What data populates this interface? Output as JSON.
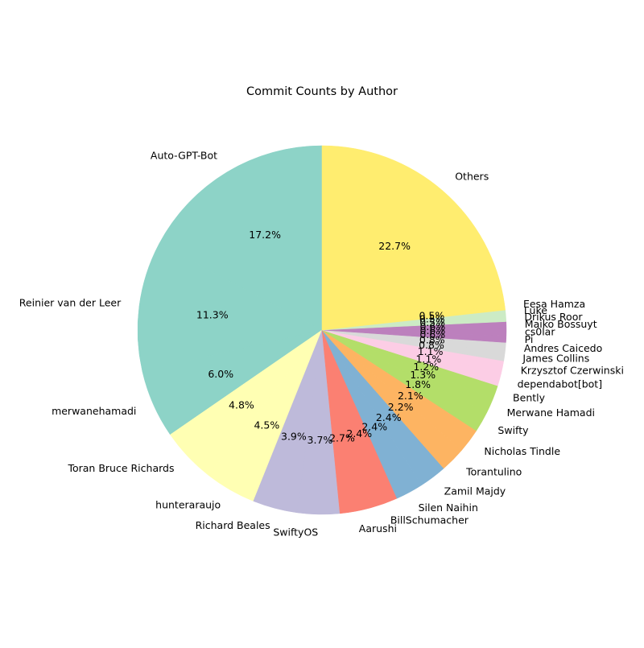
{
  "chart_data": {
    "type": "pie",
    "title": "Commit Counts by Author",
    "start_angle_deg": 90,
    "direction": "counterclockwise",
    "slices": [
      {
        "label": "Auto-GPT-Bot",
        "value": 17.2,
        "pct_text": "17.2%",
        "color": "#8dd3c7"
      },
      {
        "label": "Reinier van der Leer",
        "value": 11.3,
        "pct_text": "11.3%",
        "color": "#8dd3c7"
      },
      {
        "label": "merwanehamadi",
        "value": 6.0,
        "pct_text": "6.0%",
        "color": "#8dd3c7"
      },
      {
        "label": "Toran Bruce Richards",
        "value": 4.8,
        "pct_text": "4.8%",
        "color": "#ffffb3"
      },
      {
        "label": "hunteraraujo",
        "value": 4.5,
        "pct_text": "4.5%",
        "color": "#ffffb3"
      },
      {
        "label": "Richard Beales",
        "value": 3.9,
        "pct_text": "3.9%",
        "color": "#bebada"
      },
      {
        "label": "SwiftyOS",
        "value": 3.7,
        "pct_text": "3.7%",
        "color": "#bebada"
      },
      {
        "label": "Aarushi",
        "value": 2.7,
        "pct_text": "2.7%",
        "color": "#fb8072"
      },
      {
        "label": "BillSchumacher",
        "value": 2.4,
        "pct_text": "2.4%",
        "color": "#fb8072"
      },
      {
        "label": "Silen Naihin",
        "value": 2.4,
        "pct_text": "2.4%",
        "color": "#80b1d3"
      },
      {
        "label": "Zamil Majdy",
        "value": 2.4,
        "pct_text": "2.4%",
        "color": "#80b1d3"
      },
      {
        "label": "Torantulino",
        "value": 2.2,
        "pct_text": "2.2%",
        "color": "#fdb462"
      },
      {
        "label": "Nicholas Tindle",
        "value": 2.1,
        "pct_text": "2.1%",
        "color": "#fdb462"
      },
      {
        "label": "Swifty",
        "value": 1.8,
        "pct_text": "1.8%",
        "color": "#b3de69"
      },
      {
        "label": "Merwane Hamadi",
        "value": 1.3,
        "pct_text": "1.3%",
        "color": "#b3de69"
      },
      {
        "label": "Bently",
        "value": 1.2,
        "pct_text": "1.2%",
        "color": "#b3de69"
      },
      {
        "label": "dependabot[bot]",
        "value": 1.1,
        "pct_text": "1.1%",
        "color": "#fccde5"
      },
      {
        "label": "Krzysztof Czerwinski",
        "value": 1.1,
        "pct_text": "1.1%",
        "color": "#fccde5"
      },
      {
        "label": "James Collins",
        "value": 0.8,
        "pct_text": "0.8%",
        "color": "#d9d9d9"
      },
      {
        "label": "Andres Caicedo",
        "value": 0.8,
        "pct_text": "0.8%",
        "color": "#d9d9d9"
      },
      {
        "label": "Pi",
        "value": 0.6,
        "pct_text": "0.6%",
        "color": "#bc80bd"
      },
      {
        "label": "cs0lar",
        "value": 0.6,
        "pct_text": "0.6%",
        "color": "#bc80bd"
      },
      {
        "label": "Maiko Bossuyt",
        "value": 0.6,
        "pct_text": "0.6%",
        "color": "#bc80bd"
      },
      {
        "label": "Drikus Roor",
        "value": 0.5,
        "pct_text": "0.5%",
        "color": "#ccebc5"
      },
      {
        "label": "Luke",
        "value": 0.5,
        "pct_text": "0.5%",
        "color": "#ccebc5"
      },
      {
        "label": "Eesa Hamza",
        "value": 0.5,
        "pct_text": "0.5%",
        "color": "#ffed6f"
      },
      {
        "label": "Others",
        "value": 22.7,
        "pct_text": "22.7%",
        "color": "#ffed6f"
      }
    ]
  }
}
